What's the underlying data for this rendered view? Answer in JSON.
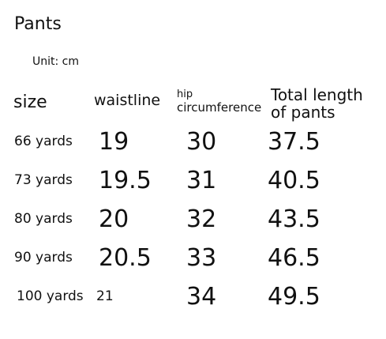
{
  "header": {
    "title": "Pants",
    "unit": "Unit: cm"
  },
  "table": {
    "columns": [
      [
        "size"
      ],
      [
        "waistline"
      ],
      [
        "hip",
        "circumference"
      ],
      [
        "Total length",
        "of pants"
      ]
    ],
    "rows": [
      [
        "66 yards",
        "19",
        "30",
        "37.5"
      ],
      [
        "73 yards",
        "19.5",
        "31",
        "40.5"
      ],
      [
        "80 yards",
        "20",
        "32",
        "43.5"
      ],
      [
        "90 yards",
        "20.5",
        "33",
        "46.5"
      ],
      [
        "100 yards",
        "21",
        "34",
        "49.5"
      ]
    ]
  }
}
